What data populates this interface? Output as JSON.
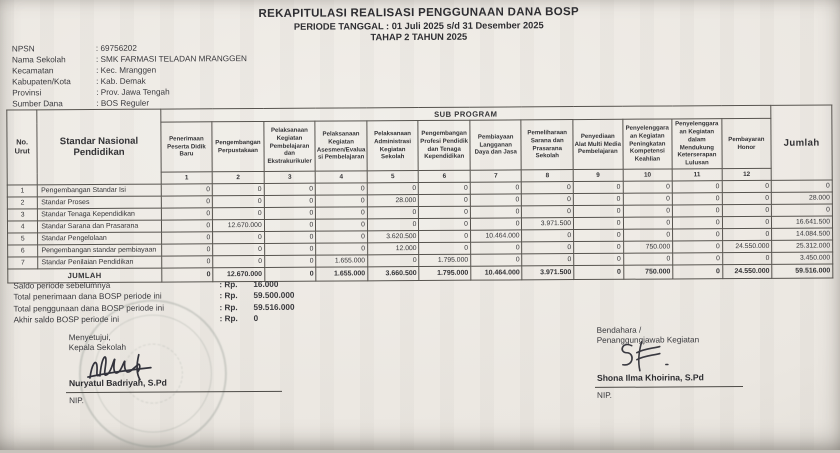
{
  "title": {
    "line1": "REKAPITULASI REALISASI PENGGUNAAN DANA BOSP",
    "line2": "PERIODE TANGGAL : 01 Juli 2025 s/d 31 Desember 2025",
    "line3": "TAHAP 2 TAHUN 2025"
  },
  "school_info": [
    {
      "label": "NPSN",
      "value": ": 69756202"
    },
    {
      "label": "Nama Sekolah",
      "value": ": SMK FARMASI TELADAN MRANGGEN"
    },
    {
      "label": "Kecamatan",
      "value": ": Kec. Mranggen"
    },
    {
      "label": "Kabupaten/Kota",
      "value": ": Kab. Demak"
    },
    {
      "label": "Provinsi",
      "value": ": Prov. Jawa Tengah"
    },
    {
      "label": "Sumber Dana",
      "value": ": BOS Reguler"
    }
  ],
  "table": {
    "col_no_label": "No. Urut",
    "col_snp_label": "Standar Nasional Pendidikan",
    "subprogram_label": "SUB PROGRAM",
    "jumlah_label": "Jumlah",
    "sub_columns": [
      "Penerimaan Peserta Didik Baru",
      "Pengembangan Perpustakaan",
      "Pelaksanaan Kegiatan Pembelajaran dan Ekstrakurikuler",
      "Pelaksanaan Kegiatan Asesmen/Evaluasi Pembelajaran",
      "Pelaksanaan Administrasi Kegiatan Sekolah",
      "Pengembangan Profesi Pendidik dan Tenaga Kependidikan",
      "Pembiayaan Langganan Daya dan Jasa",
      "Pemeliharaan Sarana dan Prasarana Sekolah",
      "Penyediaan Alat Multi Media Pembelajaran",
      "Penyelenggaraan Kegiatan Peningkatan Kompetensi Keahlian",
      "Penyelenggaraan Kegiatan dalam Mendukung Keterserapan Lulusan",
      "Pembayaran Honor"
    ],
    "sub_numbers": [
      "1",
      "2",
      "3",
      "4",
      "5",
      "6",
      "7",
      "8",
      "9",
      "10",
      "11",
      "12"
    ],
    "rows": [
      {
        "no": "1",
        "label": "Pengembangan Standar Isi",
        "values": [
          "0",
          "0",
          "0",
          "0",
          "0",
          "0",
          "0",
          "0",
          "0",
          "0",
          "0",
          "0"
        ],
        "jumlah": "0"
      },
      {
        "no": "2",
        "label": "Standar Proses",
        "values": [
          "0",
          "0",
          "0",
          "0",
          "28.000",
          "0",
          "0",
          "0",
          "0",
          "0",
          "0",
          "0"
        ],
        "jumlah": "28.000"
      },
      {
        "no": "3",
        "label": "Standar Tenaga Kependidikan",
        "values": [
          "0",
          "0",
          "0",
          "0",
          "0",
          "0",
          "0",
          "0",
          "0",
          "0",
          "0",
          "0"
        ],
        "jumlah": "0"
      },
      {
        "no": "4",
        "label": "Standar Sarana dan Prasarana",
        "values": [
          "0",
          "12.670.000",
          "0",
          "0",
          "0",
          "0",
          "0",
          "3.971.500",
          "0",
          "0",
          "0",
          "0"
        ],
        "jumlah": "16.641.500"
      },
      {
        "no": "5",
        "label": "Standar Pengelolaan",
        "values": [
          "0",
          "0",
          "0",
          "0",
          "3.620.500",
          "0",
          "10.464.000",
          "0",
          "0",
          "0",
          "0",
          "0"
        ],
        "jumlah": "14.084.500"
      },
      {
        "no": "6",
        "label": "Pengembangan standar pembiayaan",
        "values": [
          "0",
          "0",
          "0",
          "0",
          "12.000",
          "0",
          "0",
          "0",
          "0",
          "750.000",
          "0",
          "24.550.000"
        ],
        "jumlah": "25.312.000"
      },
      {
        "no": "7",
        "label": "Standar Penilaian Pendidikan",
        "values": [
          "0",
          "0",
          "0",
          "1.655.000",
          "0",
          "1.795.000",
          "0",
          "0",
          "0",
          "0",
          "0",
          "0"
        ],
        "jumlah": "3.450.000"
      }
    ],
    "total_row": {
      "label": "JUMLAH",
      "values": [
        "0",
        "12.670.000",
        "0",
        "1.655.000",
        "3.660.500",
        "1.795.000",
        "10.464.000",
        "3.971.500",
        "0",
        "750.000",
        "0",
        "24.550.000"
      ],
      "jumlah": "59.516.000"
    }
  },
  "summary": {
    "prefix": ": Rp.",
    "items": [
      {
        "label": "Saldo periode sebelumnya",
        "amount": "16.000"
      },
      {
        "label": "Total penerimaan dana BOSP periode ini",
        "amount": "59.500.000"
      },
      {
        "label": "Total penggunaan dana BOSP periode ini",
        "amount": "59.516.000"
      },
      {
        "label": "Akhir saldo BOSP periode ini",
        "amount": "0"
      }
    ]
  },
  "signatures": {
    "left": {
      "line1": "Menyetujui,",
      "line2": "Kepala Sekolah",
      "name": "Nuryatul Badriyah, S.Pd",
      "nip": "NIP."
    },
    "right": {
      "line1": "Bendahara /",
      "line2": "Penanggungjawab Kegiatan",
      "name": "Shona Ilma Khoirina, S.Pd",
      "nip": "NIP."
    }
  },
  "colors": {
    "paper": "#ebe7e1",
    "ink": "#36363a",
    "table_border": "#57544f",
    "signature_ink": "#23232e",
    "stamp": "#7d8780"
  }
}
